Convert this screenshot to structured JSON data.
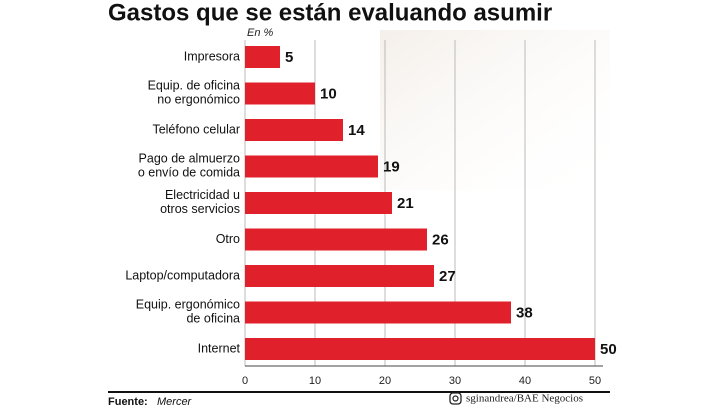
{
  "chart_data": {
    "type": "bar",
    "orientation": "horizontal",
    "title": "Gastos que se están evaluando asumir",
    "unit_label": "En %",
    "categories": [
      "Impresora",
      "Equip. de oficina\nno ergonómico",
      "Teléfono celular",
      "Pago de almuerzo\no envío de comida",
      "Electricidad u\notros servicios",
      "Otro",
      "Laptop/computadora",
      "Equip. ergonómico\nde oficina",
      "Internet"
    ],
    "values": [
      5,
      10,
      14,
      19,
      21,
      26,
      27,
      38,
      50
    ],
    "color": "#e0202a",
    "xlim": [
      0,
      50
    ],
    "xticks": [
      0,
      10,
      20,
      30,
      40,
      50
    ],
    "grid": true,
    "source_label": "Fuente:",
    "source": "Mercer",
    "credit": "sginandrea/BAE Negocios"
  }
}
